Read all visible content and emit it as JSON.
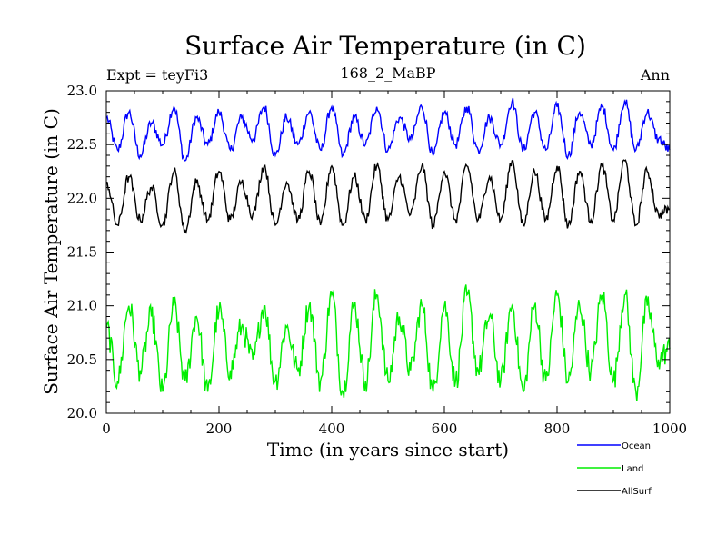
{
  "chart_data": {
    "type": "line",
    "title": "Surface Air Temperature (in C)",
    "subtitle_left": "Expt = teyFi3",
    "subtitle_center": "168_2_MaBP",
    "subtitle_right": "Ann",
    "xlabel": "Time (in years since start)",
    "ylabel": "Surface Air Temperature (in C)",
    "xlim": [
      0,
      1000
    ],
    "ylim": [
      20.0,
      23.0
    ],
    "xticks": [
      0,
      200,
      400,
      600,
      800,
      1000
    ],
    "xtick_labels": [
      "0",
      "200",
      "400",
      "600",
      "800",
      "1000"
    ],
    "yticks": [
      20.0,
      20.5,
      21.0,
      21.5,
      22.0,
      22.5,
      23.0
    ],
    "ytick_labels": [
      "20.0",
      "20.5",
      "21.0",
      "21.5",
      "22.0",
      "22.5",
      "23.0"
    ],
    "legend_position": "bottom-right",
    "series": [
      {
        "name": "Ocean",
        "color": "#0000ff",
        "x": [
          0,
          20,
          40,
          60,
          80,
          100,
          120,
          140,
          160,
          180,
          200,
          220,
          240,
          260,
          280,
          300,
          320,
          340,
          360,
          380,
          400,
          420,
          440,
          460,
          480,
          500,
          520,
          540,
          560,
          580,
          600,
          620,
          640,
          660,
          680,
          700,
          720,
          740,
          760,
          780,
          800,
          820,
          840,
          860,
          880,
          900,
          920,
          940,
          960,
          980,
          1000
        ],
        "values": [
          22.75,
          22.45,
          22.8,
          22.4,
          22.7,
          22.5,
          22.85,
          22.35,
          22.75,
          22.5,
          22.8,
          22.45,
          22.75,
          22.55,
          22.85,
          22.4,
          22.75,
          22.5,
          22.8,
          22.45,
          22.85,
          22.4,
          22.75,
          22.5,
          22.85,
          22.45,
          22.75,
          22.55,
          22.85,
          22.4,
          22.8,
          22.5,
          22.85,
          22.45,
          22.75,
          22.5,
          22.9,
          22.45,
          22.8,
          22.45,
          22.85,
          22.4,
          22.8,
          22.5,
          22.85,
          22.45,
          22.9,
          22.45,
          22.8,
          22.55,
          22.45
        ]
      },
      {
        "name": "Land",
        "color": "#00ee00",
        "x": [
          0,
          20,
          40,
          60,
          80,
          100,
          120,
          140,
          160,
          180,
          200,
          220,
          240,
          260,
          280,
          300,
          320,
          340,
          360,
          380,
          400,
          420,
          440,
          460,
          480,
          500,
          520,
          540,
          560,
          580,
          600,
          620,
          640,
          660,
          680,
          700,
          720,
          740,
          760,
          780,
          800,
          820,
          840,
          860,
          880,
          900,
          920,
          940,
          960,
          980,
          1000
        ],
        "values": [
          20.8,
          20.3,
          21.0,
          20.4,
          20.9,
          20.2,
          21.0,
          20.3,
          20.9,
          20.2,
          20.95,
          20.4,
          20.8,
          20.5,
          21.0,
          20.3,
          20.8,
          20.4,
          21.0,
          20.3,
          21.1,
          20.2,
          21.0,
          20.3,
          21.1,
          20.3,
          20.9,
          20.4,
          21.0,
          20.2,
          21.0,
          20.3,
          21.1,
          20.4,
          20.9,
          20.3,
          21.0,
          20.2,
          21.0,
          20.3,
          21.1,
          20.3,
          21.0,
          20.4,
          21.1,
          20.3,
          21.1,
          20.2,
          21.0,
          20.5,
          20.6
        ]
      },
      {
        "name": "AllSurf",
        "color": "#000000",
        "x": [
          0,
          20,
          40,
          60,
          80,
          100,
          120,
          140,
          160,
          180,
          200,
          220,
          240,
          260,
          280,
          300,
          320,
          340,
          360,
          380,
          400,
          420,
          440,
          460,
          480,
          500,
          520,
          540,
          560,
          580,
          600,
          620,
          640,
          660,
          680,
          700,
          720,
          740,
          760,
          780,
          800,
          820,
          840,
          860,
          880,
          900,
          920,
          940,
          960,
          980,
          1000
        ],
        "values": [
          22.15,
          21.75,
          22.2,
          21.8,
          22.1,
          21.75,
          22.25,
          21.7,
          22.15,
          21.8,
          22.25,
          21.8,
          22.15,
          21.85,
          22.3,
          21.75,
          22.15,
          21.8,
          22.25,
          21.75,
          22.3,
          21.75,
          22.2,
          21.8,
          22.3,
          21.8,
          22.2,
          21.85,
          22.3,
          21.75,
          22.25,
          21.8,
          22.3,
          21.8,
          22.2,
          21.8,
          22.35,
          21.75,
          22.25,
          21.8,
          22.3,
          21.75,
          22.25,
          21.8,
          22.3,
          21.8,
          22.35,
          21.75,
          22.25,
          21.85,
          21.9
        ]
      }
    ]
  }
}
